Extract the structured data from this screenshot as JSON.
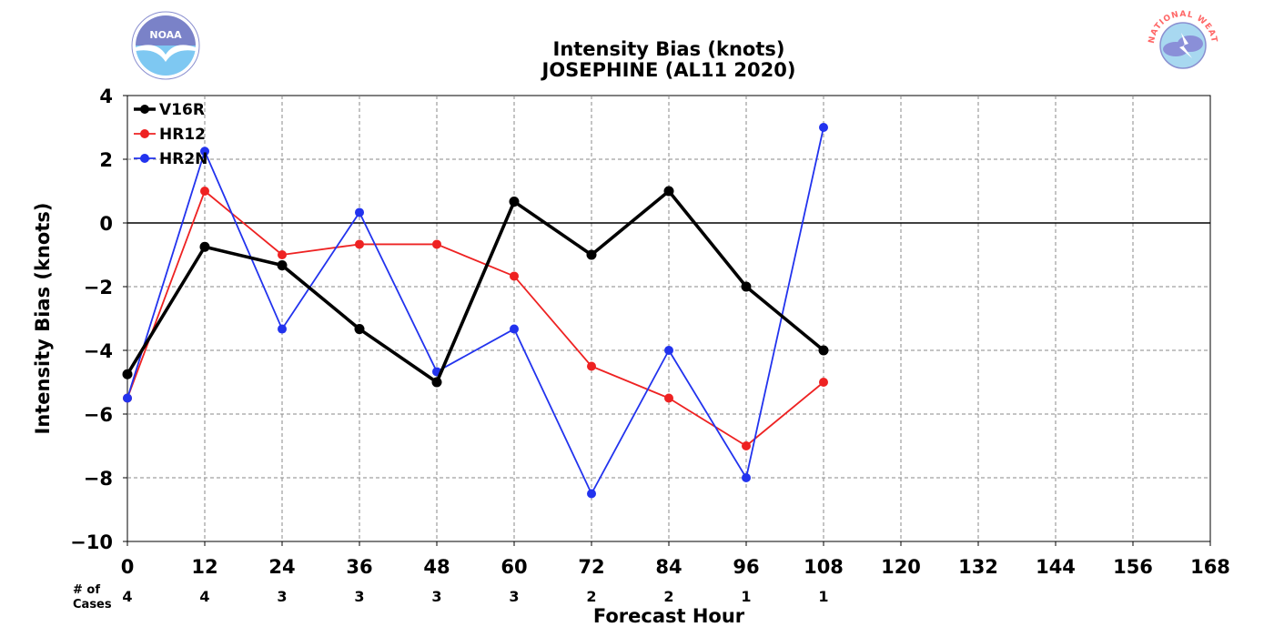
{
  "logos": {
    "left": {
      "icon": "noaa-logo",
      "text": "NOAA"
    },
    "right": {
      "icon": "nws-logo",
      "text": "NATIONAL WEATHER SERVICE"
    }
  },
  "chart_data": {
    "type": "line",
    "title": "Intensity Bias (knots)",
    "subtitle": "JOSEPHINE (AL11 2020)",
    "xlabel": "Forecast Hour",
    "ylabel": "Intensity Bias (knots)",
    "xlim": [
      0,
      168
    ],
    "ylim": [
      -10,
      4
    ],
    "xticks": [
      0,
      12,
      24,
      36,
      48,
      60,
      72,
      84,
      96,
      108,
      120,
      132,
      144,
      156,
      168
    ],
    "yticks": [
      -10,
      -8,
      -6,
      -4,
      -2,
      0,
      2,
      4
    ],
    "ytick_labels": [
      "−10",
      "−8",
      "−6",
      "−4",
      "−2",
      "0",
      "2",
      "4"
    ],
    "grid": true,
    "legend_position": "top-left",
    "cases_label": "# of Cases",
    "cases_x": [
      0,
      12,
      24,
      36,
      48,
      60,
      72,
      84,
      96,
      108
    ],
    "cases": [
      "4",
      "4",
      "3",
      "3",
      "3",
      "3",
      "2",
      "2",
      "1",
      "1"
    ],
    "series": [
      {
        "name": "V16R",
        "color": "#000000",
        "x": [
          0,
          12,
          24,
          36,
          48,
          60,
          72,
          84,
          96,
          108
        ],
        "values": [
          -4.75,
          -0.75,
          -1.33,
          -3.33,
          -5.0,
          0.67,
          -1.0,
          1.0,
          -2.0,
          -4.0
        ]
      },
      {
        "name": "HR12",
        "color": "#ee2222",
        "x": [
          0,
          12,
          24,
          36,
          48,
          60,
          72,
          84,
          96,
          108
        ],
        "values": [
          -5.5,
          1.0,
          -1.0,
          -0.67,
          -0.67,
          -1.67,
          -4.5,
          -5.5,
          -7.0,
          -5.0
        ]
      },
      {
        "name": "HR2N",
        "color": "#2233ee",
        "x": [
          0,
          12,
          24,
          36,
          48,
          60,
          72,
          84,
          96,
          108
        ],
        "values": [
          -5.5,
          2.25,
          -3.33,
          0.33,
          -4.67,
          -3.33,
          -8.5,
          -4.0,
          -8.0,
          3.0
        ]
      }
    ]
  }
}
